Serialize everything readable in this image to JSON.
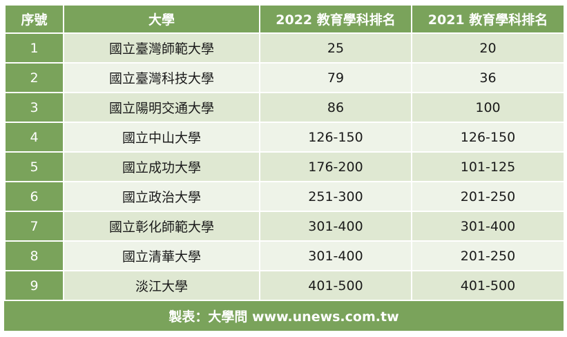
{
  "table": {
    "headers": [
      "序號",
      "大學",
      "2022 教育學科排名",
      "2021 教育學科排名"
    ],
    "rows": [
      {
        "idx": "1",
        "university": "國立臺灣師範大學",
        "rank2022": "25",
        "rank2021": "20"
      },
      {
        "idx": "2",
        "university": "國立臺灣科技大學",
        "rank2022": "79",
        "rank2021": "36"
      },
      {
        "idx": "3",
        "university": "國立陽明交通大學",
        "rank2022": "86",
        "rank2021": "100"
      },
      {
        "idx": "4",
        "university": "國立中山大學",
        "rank2022": "126-150",
        "rank2021": "126-150"
      },
      {
        "idx": "5",
        "university": "國立成功大學",
        "rank2022": "176-200",
        "rank2021": "101-125"
      },
      {
        "idx": "6",
        "university": "國立政治大學",
        "rank2022": "251-300",
        "rank2021": "201-250"
      },
      {
        "idx": "7",
        "university": "國立彰化師範大學",
        "rank2022": "301-400",
        "rank2021": "301-400"
      },
      {
        "idx": "8",
        "university": "國立清華大學",
        "rank2022": "301-400",
        "rank2021": "201-250"
      },
      {
        "idx": "9",
        "university": "淡江大學",
        "rank2022": "401-500",
        "rank2021": "401-500"
      }
    ]
  },
  "footer": {
    "text": "製表：大學問 www.unews.com.tw"
  },
  "colors": {
    "header_green": "#7aa35b",
    "row_light": "#dfe8d2",
    "row_pale": "#eef3e8"
  }
}
